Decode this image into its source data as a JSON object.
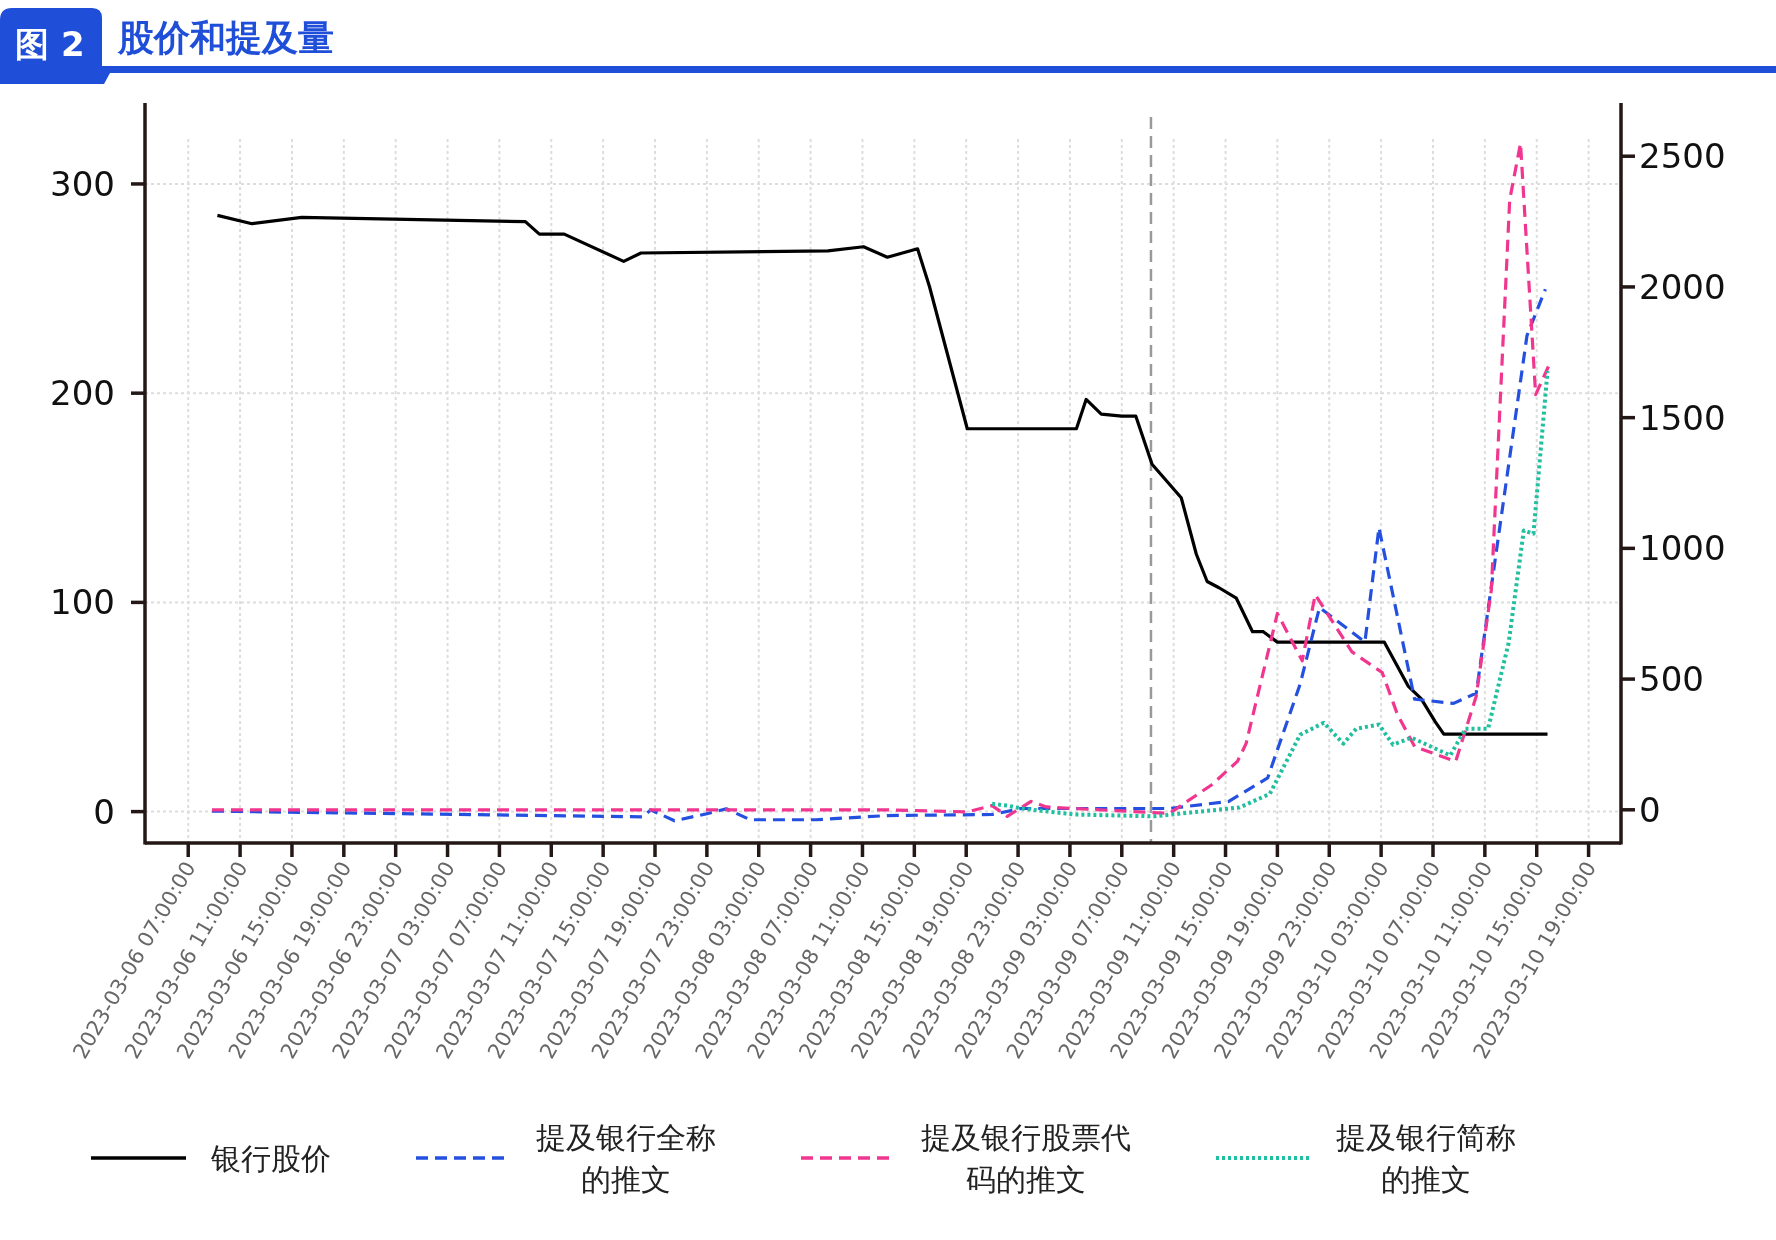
{
  "chart_data": {
    "type": "line",
    "title": "股价和提及量",
    "annotations": [
      "图 2"
    ],
    "xlim": [
      "2023-03-06T03:40",
      "2023-03-10T21:30"
    ],
    "xticks": [
      {
        "value": "2023-03-06T07:00",
        "label": "2023-03-06 07:00:00"
      },
      {
        "value": "2023-03-06T11:00",
        "label": "2023-03-06 11:00:00"
      },
      {
        "value": "2023-03-06T15:00",
        "label": "2023-03-06 15:00:00"
      },
      {
        "value": "2023-03-06T19:00",
        "label": "2023-03-06 19:00:00"
      },
      {
        "value": "2023-03-06T23:00",
        "label": "2023-03-06 23:00:00"
      },
      {
        "value": "2023-03-07T03:00",
        "label": "2023-03-07 03:00:00"
      },
      {
        "value": "2023-03-07T07:00",
        "label": "2023-03-07 07:00:00"
      },
      {
        "value": "2023-03-07T11:00",
        "label": "2023-03-07 11:00:00"
      },
      {
        "value": "2023-03-07T15:00",
        "label": "2023-03-07 15:00:00"
      },
      {
        "value": "2023-03-07T19:00",
        "label": "2023-03-07 19:00:00"
      },
      {
        "value": "2023-03-07T23:00",
        "label": "2023-03-07 23:00:00"
      },
      {
        "value": "2023-03-08T03:00",
        "label": "2023-03-08 03:00:00"
      },
      {
        "value": "2023-03-08T07:00",
        "label": "2023-03-08 07:00:00"
      },
      {
        "value": "2023-03-08T11:00",
        "label": "2023-03-08 11:00:00"
      },
      {
        "value": "2023-03-08T15:00",
        "label": "2023-03-08 15:00:00"
      },
      {
        "value": "2023-03-08T19:00",
        "label": "2023-03-08 19:00:00"
      },
      {
        "value": "2023-03-08T23:00",
        "label": "2023-03-08 23:00:00"
      },
      {
        "value": "2023-03-09T03:00",
        "label": "2023-03-09 03:00:00"
      },
      {
        "value": "2023-03-09T07:00",
        "label": "2023-03-09 07:00:00"
      },
      {
        "value": "2023-03-09T11:00",
        "label": "2023-03-09 11:00:00"
      },
      {
        "value": "2023-03-09T15:00",
        "label": "2023-03-09 15:00:00"
      },
      {
        "value": "2023-03-09T19:00",
        "label": "2023-03-09 19:00:00"
      },
      {
        "value": "2023-03-09T23:00",
        "label": "2023-03-09 23:00:00"
      },
      {
        "value": "2023-03-10T03:00",
        "label": "2023-03-10 03:00:00"
      },
      {
        "value": "2023-03-10T07:00",
        "label": "2023-03-10 07:00:00"
      },
      {
        "value": "2023-03-10T11:00",
        "label": "2023-03-10 11:00:00"
      },
      {
        "value": "2023-03-10T15:00",
        "label": "2023-03-10 15:00:00"
      },
      {
        "value": "2023-03-10T19:00",
        "label": "2023-03-10 19:00:00"
      }
    ],
    "ylim": [
      -15,
      332
    ],
    "yticks": [
      0,
      100,
      200,
      300
    ],
    "y2lim": [
      -127,
      2650
    ],
    "y2ticks": [
      0,
      500,
      1000,
      1500,
      2000,
      2500
    ],
    "grid": true,
    "legend": "bottom",
    "ref_lines": [
      {
        "axis": "x",
        "value": "2023-03-09T09:15",
        "color": "#999999",
        "line_style": "dashed"
      }
    ],
    "series": [
      {
        "name": "银行股价",
        "color": "#000000",
        "line_style": "solid",
        "x": [
          "2023-03-06T09:15",
          "2023-03-06T11:55",
          "2023-03-06T15:45",
          "2023-03-07T09:00",
          "2023-03-07T10:05",
          "2023-03-07T12:00",
          "2023-03-07T16:35",
          "2023-03-07T17:55",
          "2023-03-08T08:20",
          "2023-03-08T11:05",
          "2023-03-08T12:55",
          "2023-03-08T15:15",
          "2023-03-08T16:10",
          "2023-03-08T19:05",
          "2023-03-09T03:30",
          "2023-03-09T04:15",
          "2023-03-09T05:25",
          "2023-03-09T07:00",
          "2023-03-09T08:05",
          "2023-03-09T09:20",
          "2023-03-09T11:35",
          "2023-03-09T12:45",
          "2023-03-09T13:35",
          "2023-03-09T14:30",
          "2023-03-09T15:50",
          "2023-03-09T17:05",
          "2023-03-09T17:55",
          "2023-03-09T19:00",
          "2023-03-10T03:15",
          "2023-03-10T05:05",
          "2023-03-10T06:05",
          "2023-03-10T07:10",
          "2023-03-10T07:50",
          "2023-03-10T15:50"
        ],
        "values": [
          285,
          281,
          284,
          282,
          276,
          276,
          263,
          267,
          268,
          270,
          265,
          269,
          251,
          183,
          183,
          197,
          190,
          189,
          189,
          166,
          150,
          123,
          110,
          107,
          102,
          86,
          86,
          81,
          81,
          60,
          54,
          43,
          37,
          37
        ]
      },
      {
        "name": "提及银行全称的推文",
        "color": "#2450e0",
        "line_style": "dashed",
        "axis": "y2",
        "x": [
          "2023-03-06T08:50",
          "2023-03-07T18:05",
          "2023-03-07T18:40",
          "2023-03-07T20:30",
          "2023-03-07T22:55",
          "2023-03-08T00:30",
          "2023-03-08T02:20",
          "2023-03-08T07:25",
          "2023-03-08T12:55",
          "2023-03-08T21:00",
          "2023-03-08T23:15",
          "2023-03-09T10:40",
          "2023-03-09T15:15",
          "2023-03-09T18:15",
          "2023-03-09T20:45",
          "2023-03-09T22:15",
          "2023-03-10T01:45",
          "2023-03-10T02:50",
          "2023-03-10T05:35",
          "2023-03-10T08:35",
          "2023-03-10T10:20",
          "2023-03-10T14:15",
          "2023-03-10T15:40"
        ],
        "values": [
          -5,
          -27,
          0,
          -42,
          -16,
          4,
          -38,
          -38,
          -22,
          -18,
          5,
          5,
          32,
          122,
          480,
          774,
          642,
          1079,
          423,
          407,
          446,
          1814,
          1991
        ]
      },
      {
        "name": "提及银行股票代码的推文",
        "color": "#f0368f",
        "line_style": "dashed",
        "axis": "y2",
        "x": [
          "2023-03-06T08:50",
          "2023-03-08T12:55",
          "2023-03-08T19:05",
          "2023-03-08T21:00",
          "2023-03-08T22:10",
          "2023-03-09T00:00",
          "2023-03-09T01:10",
          "2023-03-09T03:20",
          "2023-03-09T10:40",
          "2023-03-09T13:55",
          "2023-03-09T15:55",
          "2023-03-09T16:35",
          "2023-03-09T19:00",
          "2023-03-09T20:55",
          "2023-03-09T21:55",
          "2023-03-10T00:45",
          "2023-03-10T03:05",
          "2023-03-10T04:15",
          "2023-03-10T05:35",
          "2023-03-10T08:45",
          "2023-03-10T10:20",
          "2023-03-10T11:30",
          "2023-03-10T12:55",
          "2023-03-10T13:45",
          "2023-03-10T14:55",
          "2023-03-10T15:55"
        ],
        "values": [
          0,
          0,
          -8,
          16,
          -25,
          32,
          11,
          5,
          -14,
          95,
          185,
          253,
          751,
          570,
          823,
          604,
          525,
          366,
          242,
          185,
          434,
          841,
          2334,
          2549,
          1588,
          1697
        ]
      },
      {
        "name": "提及银行简称的推文",
        "color": "#1fbf9f",
        "line_style": "dotted",
        "axis": "y2",
        "x": [
          "2023-03-08T21:00",
          "2023-03-08T22:10",
          "2023-03-08T23:15",
          "2023-03-09T03:20",
          "2023-03-09T09:30",
          "2023-03-09T16:05",
          "2023-03-09T18:25",
          "2023-03-09T20:45",
          "2023-03-09T22:35",
          "2023-03-10T00:05",
          "2023-03-10T01:05",
          "2023-03-10T02:50",
          "2023-03-10T03:55",
          "2023-03-10T05:20",
          "2023-03-10T08:20",
          "2023-03-10T09:30",
          "2023-03-10T11:15",
          "2023-03-10T12:50",
          "2023-03-10T14:00",
          "2023-03-10T14:45",
          "2023-03-10T15:50"
        ],
        "values": [
          23,
          16,
          5,
          -18,
          -25,
          9,
          61,
          287,
          333,
          253,
          310,
          326,
          249,
          276,
          208,
          310,
          310,
          638,
          1068,
          1056,
          1678
        ]
      }
    ]
  }
}
